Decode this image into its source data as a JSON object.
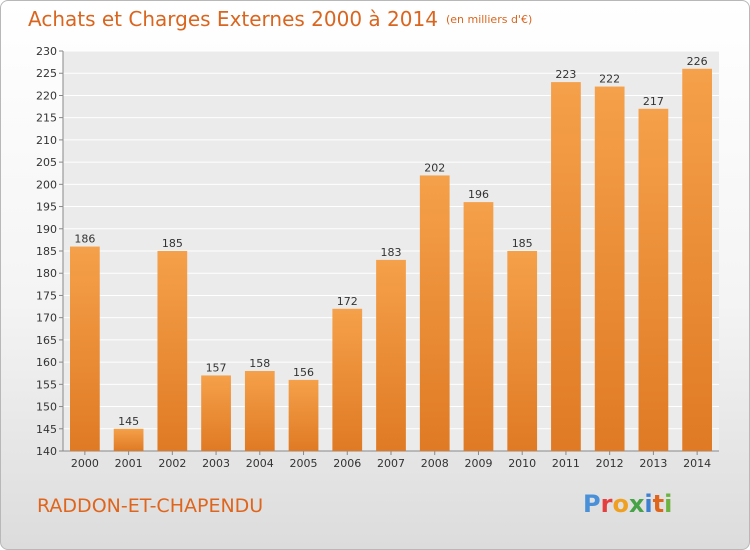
{
  "title": "Achats et Charges Externes 2000 à 2014",
  "unit": "(en milliers d'€)",
  "commune": "RADDON-ET-CHAPENDU",
  "logo": [
    "P",
    "r",
    "o",
    "x",
    "i",
    "t",
    "i"
  ],
  "colors": {
    "bar_light": "#f5a04a",
    "bar_dark": "#e07a24",
    "accent": "#d9651f"
  },
  "chart_data": {
    "type": "bar",
    "categories": [
      "2000",
      "2001",
      "2002",
      "2003",
      "2004",
      "2005",
      "2006",
      "2007",
      "2008",
      "2009",
      "2010",
      "2011",
      "2012",
      "2013",
      "2014"
    ],
    "values": [
      186,
      145,
      185,
      157,
      158,
      156,
      172,
      183,
      202,
      196,
      185,
      223,
      222,
      217,
      226
    ],
    "ylim": [
      140,
      230
    ],
    "yticks": [
      140,
      145,
      150,
      155,
      160,
      165,
      170,
      175,
      180,
      185,
      190,
      195,
      200,
      205,
      210,
      215,
      220,
      225,
      230
    ],
    "grid": true
  }
}
